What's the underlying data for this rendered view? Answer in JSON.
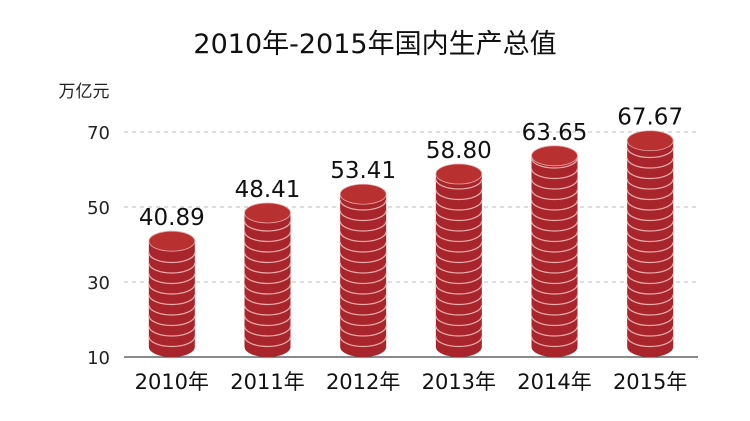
{
  "chart_data": {
    "type": "bar",
    "title": "2010年-2015年国内生产总值",
    "ylabel": "万亿元",
    "xlabel": "",
    "categories": [
      "2010年",
      "2011年",
      "2012年",
      "2013年",
      "2014年",
      "2015年"
    ],
    "values": [
      40.89,
      48.41,
      53.41,
      58.8,
      63.65,
      67.67
    ],
    "value_labels": [
      "40.89",
      "48.41",
      "53.41",
      "58.80",
      "63.65",
      "67.67"
    ],
    "yticks": [
      10,
      30,
      50,
      70
    ],
    "ylim": [
      10,
      70
    ],
    "grid": true,
    "bar_style": "stacked-coins",
    "colors": {
      "bar": "#a8262b",
      "bar_top": "#b8302f",
      "coin_line": "#e8a9a9",
      "grid": "#bdbdbd",
      "axis": "#333333"
    }
  }
}
